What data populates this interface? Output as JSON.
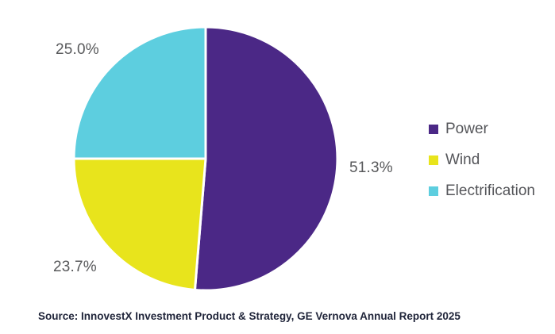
{
  "chart_data": {
    "type": "pie",
    "title": "",
    "start_angle_deg": 0,
    "direction": "clockwise",
    "legend_position": "right",
    "separator_color": "#FFFFFF",
    "slices": [
      {
        "name": "Power",
        "value": 51.3,
        "label": "51.3%",
        "color": "#4B2886"
      },
      {
        "name": "Wind",
        "value": 23.7,
        "label": "23.7%",
        "color": "#E8E41C"
      },
      {
        "name": "Electrification",
        "value": 25.0,
        "label": "25.0%",
        "color": "#5DCEDF"
      }
    ]
  },
  "source": {
    "text": "Source: InnovestX Investment Product & Strategy, GE Vernova Annual Report 2025"
  }
}
